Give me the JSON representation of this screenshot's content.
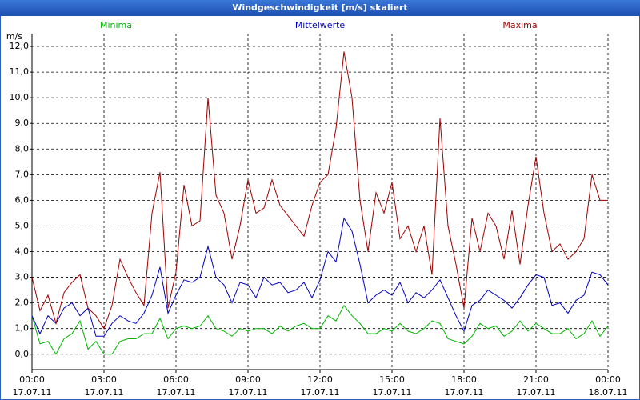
{
  "chart_data": {
    "type": "line",
    "title": "Windgeschwindigkeit [m/s] skaliert",
    "y_unit_label": "m/s",
    "x": [
      0,
      20,
      40,
      60,
      80,
      100,
      120,
      140,
      160,
      180,
      200,
      220,
      240,
      260,
      280,
      300,
      320,
      340,
      360,
      380,
      400,
      420,
      440,
      460,
      480,
      500,
      520,
      540,
      560,
      580,
      600,
      620,
      640,
      660,
      680,
      700,
      720,
      740,
      760,
      780,
      800,
      820,
      840,
      860,
      880,
      900,
      920,
      940,
      960,
      980,
      1000,
      1020,
      1040,
      1060,
      1080,
      1100,
      1120,
      1140,
      1160,
      1180,
      1200,
      1220,
      1240,
      1260,
      1280,
      1300,
      1320,
      1340,
      1360,
      1380,
      1400,
      1420,
      1440
    ],
    "xlim": [
      0,
      1440
    ],
    "xticks": [
      {
        "value": 0,
        "label": "00:00",
        "date": "17.07.11"
      },
      {
        "value": 180,
        "label": "03:00",
        "date": "17.07.11"
      },
      {
        "value": 360,
        "label": "06:00",
        "date": "17.07.11"
      },
      {
        "value": 540,
        "label": "09:00",
        "date": "17.07.11"
      },
      {
        "value": 720,
        "label": "12:00",
        "date": "17.07.11"
      },
      {
        "value": 900,
        "label": "15:00",
        "date": "17.07.11"
      },
      {
        "value": 1080,
        "label": "18:00",
        "date": "17.07.11"
      },
      {
        "value": 1260,
        "label": "21:00",
        "date": "17.07.11"
      },
      {
        "value": 1440,
        "label": "00:00",
        "date": "18.07.11"
      }
    ],
    "ylim": [
      -0.6,
      12.5
    ],
    "yticks": [
      {
        "value": 0,
        "label": "0,0"
      },
      {
        "value": 1,
        "label": "1,0"
      },
      {
        "value": 2,
        "label": "2,0"
      },
      {
        "value": 3,
        "label": "3,0"
      },
      {
        "value": 4,
        "label": "4,0"
      },
      {
        "value": 5,
        "label": "5,0"
      },
      {
        "value": 6,
        "label": "6,0"
      },
      {
        "value": 7,
        "label": "7,0"
      },
      {
        "value": 8,
        "label": "8,0"
      },
      {
        "value": 9,
        "label": "9,0"
      },
      {
        "value": 10,
        "label": "10,0"
      },
      {
        "value": 11,
        "label": "11,0"
      },
      {
        "value": 12,
        "label": "12,0"
      }
    ],
    "grid": true,
    "series": [
      {
        "name": "Minima",
        "color": "#00b400",
        "values": [
          1.5,
          0.4,
          0.5,
          0.0,
          0.6,
          0.8,
          1.3,
          0.2,
          0.5,
          0.0,
          0.0,
          0.5,
          0.6,
          0.6,
          0.8,
          0.8,
          1.4,
          0.6,
          1.0,
          1.1,
          1.0,
          1.1,
          1.5,
          1.0,
          0.9,
          0.7,
          1.0,
          0.9,
          1.0,
          1.0,
          0.8,
          1.1,
          0.9,
          1.1,
          1.2,
          1.0,
          1.0,
          1.5,
          1.3,
          1.9,
          1.5,
          1.2,
          0.8,
          0.8,
          1.0,
          0.9,
          1.2,
          0.9,
          0.8,
          1.0,
          1.3,
          1.2,
          0.6,
          0.5,
          0.4,
          0.7,
          1.2,
          1.0,
          1.1,
          0.7,
          0.9,
          1.3,
          0.9,
          1.2,
          1.0,
          0.8,
          0.8,
          1.0,
          0.6,
          0.8,
          1.3,
          0.7,
          1.1
        ]
      },
      {
        "name": "Mittelwerte",
        "color": "#0000c0",
        "values": [
          1.5,
          0.8,
          1.5,
          1.2,
          1.8,
          2.0,
          1.5,
          1.8,
          0.7,
          0.7,
          1.2,
          1.5,
          1.3,
          1.2,
          1.6,
          2.3,
          3.4,
          1.6,
          2.3,
          2.9,
          2.8,
          3.0,
          4.2,
          3.0,
          2.7,
          2.0,
          2.8,
          2.7,
          2.2,
          3.0,
          2.7,
          2.8,
          2.4,
          2.5,
          2.8,
          2.2,
          2.9,
          4.0,
          3.6,
          5.3,
          4.8,
          3.5,
          2.0,
          2.3,
          2.5,
          2.3,
          2.8,
          2.0,
          2.4,
          2.2,
          2.5,
          2.9,
          2.2,
          1.5,
          0.9,
          1.9,
          2.1,
          2.5,
          2.3,
          2.1,
          1.8,
          2.2,
          2.7,
          3.1,
          3.0,
          1.9,
          2.0,
          1.6,
          2.1,
          2.3,
          3.2,
          3.1,
          2.7
        ]
      },
      {
        "name": "Maxima",
        "color": "#a00000",
        "values": [
          3.0,
          1.7,
          2.3,
          1.2,
          2.4,
          2.8,
          3.1,
          1.8,
          1.5,
          1.0,
          1.9,
          3.7,
          3.0,
          2.4,
          1.9,
          5.5,
          7.1,
          1.8,
          3.2,
          6.6,
          5.0,
          5.2,
          10.0,
          6.2,
          5.5,
          3.7,
          5.0,
          6.8,
          5.5,
          5.7,
          6.8,
          5.8,
          5.4,
          5.0,
          4.6,
          5.8,
          6.7,
          7.0,
          8.8,
          11.8,
          10.0,
          6.0,
          4.0,
          6.3,
          5.5,
          6.7,
          4.5,
          5.0,
          4.0,
          5.0,
          3.1,
          9.2,
          5.0,
          3.5,
          1.8,
          5.3,
          4.0,
          5.5,
          5.0,
          3.7,
          5.6,
          3.5,
          5.8,
          7.7,
          5.5,
          4.0,
          4.3,
          3.7,
          4.0,
          4.5,
          7.0,
          6.0,
          6.0
        ]
      }
    ]
  }
}
